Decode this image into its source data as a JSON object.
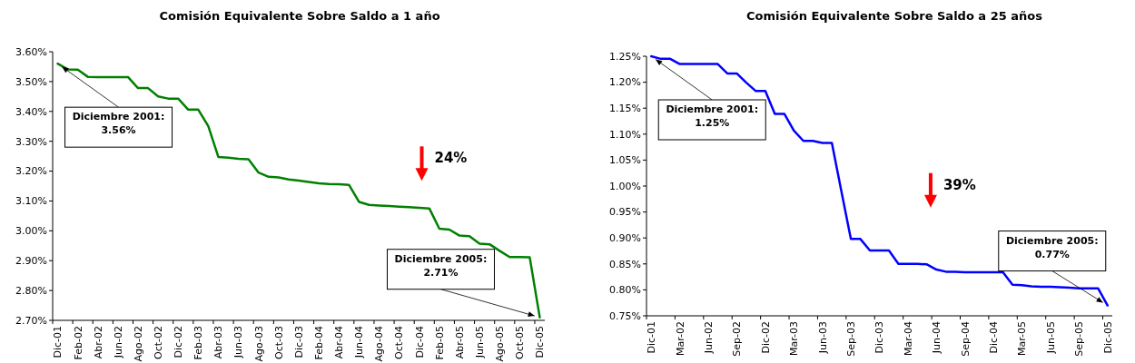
{
  "chart_data": [
    {
      "type": "line",
      "title": "Comisión Equivalente Sobre Saldo a 1 año",
      "color": "#008000",
      "categories": [
        "Dic-01",
        null,
        "Feb-02",
        null,
        "Abr-02",
        null,
        "Jun-02",
        null,
        "Ago-02",
        null,
        "Oct-02",
        null,
        "Dic-02",
        null,
        "Feb-03",
        null,
        "Abr-03",
        null,
        "Jun-03",
        null,
        "Ago-03",
        null,
        "Oct-03",
        null,
        "Dic-03",
        null,
        "Feb-04",
        null,
        "Abr-04",
        null,
        "Jun-04",
        null,
        "Ago-04",
        null,
        "Oct-04",
        null,
        "Dic-04",
        null,
        "Feb-05",
        null,
        "Abr-05",
        null,
        "Jun-05",
        null,
        "Ago-05",
        null,
        "Oct-05",
        null,
        "Dic-05"
      ],
      "values": [
        3.56,
        3.541,
        3.54,
        3.516,
        3.515,
        3.515,
        3.515,
        3.515,
        3.478,
        3.478,
        3.45,
        3.443,
        3.443,
        3.406,
        3.406,
        3.35,
        3.247,
        3.245,
        3.241,
        3.24,
        3.195,
        3.181,
        3.179,
        3.172,
        3.168,
        3.164,
        3.159,
        3.157,
        3.156,
        3.154,
        3.097,
        3.087,
        3.085,
        3.083,
        3.081,
        3.079,
        3.077,
        3.075,
        3.007,
        3.004,
        2.984,
        2.982,
        2.957,
        2.955,
        2.933,
        2.912,
        2.912,
        2.911,
        2.71
      ],
      "ylim": [
        2.7,
        3.6
      ],
      "yticks": [
        {
          "value": 2.7,
          "label": "2.70%"
        },
        {
          "value": 2.8,
          "label": "2.80%"
        },
        {
          "value": 2.9,
          "label": "2.90%"
        },
        {
          "value": 3.0,
          "label": "3.00%"
        },
        {
          "value": 3.1,
          "label": "3.10%"
        },
        {
          "value": 3.2,
          "label": "3.20%"
        },
        {
          "value": 3.3,
          "label": "3.30%"
        },
        {
          "value": 3.4,
          "label": "3.40%"
        },
        {
          "value": 3.5,
          "label": "3.50%"
        },
        {
          "value": 3.6,
          "label": "3.60%"
        }
      ],
      "annotations": [
        {
          "text": "Diciembre 2001:\n3.56%",
          "x": "Dic-01",
          "y": 3.56
        },
        {
          "text": "Diciembre 2005:\n2.71%",
          "x": "Dic-05",
          "y": 2.71
        },
        "24%"
      ]
    },
    {
      "type": "line",
      "title": "Comisión Equivalente Sobre Saldo a 25 años",
      "color": "#0000ff",
      "categories": [
        "Dic-01",
        null,
        null,
        "Mar-02",
        null,
        null,
        "Jun-02",
        null,
        null,
        "Sep-02",
        null,
        null,
        "Dic-02",
        null,
        null,
        "Mar-03",
        null,
        null,
        "Jun-03",
        null,
        null,
        "Sep-03",
        null,
        null,
        "Dic-03",
        null,
        null,
        "Mar-04",
        null,
        null,
        "Jun-04",
        null,
        null,
        "Sep-04",
        null,
        null,
        "Dic-04",
        null,
        null,
        "Mar-05",
        null,
        null,
        "Jun-05",
        null,
        null,
        "Sep-05",
        null,
        null,
        "Dic-05"
      ],
      "values": [
        1.25,
        1.245,
        1.245,
        1.235,
        1.235,
        1.235,
        1.235,
        1.235,
        1.217,
        1.217,
        1.199,
        1.183,
        1.183,
        1.139,
        1.139,
        1.107,
        1.087,
        1.087,
        1.083,
        1.083,
        0.99,
        0.898,
        0.898,
        0.876,
        0.876,
        0.876,
        0.85,
        0.85,
        0.85,
        0.849,
        0.839,
        0.835,
        0.835,
        0.834,
        0.834,
        0.834,
        0.834,
        0.834,
        0.81,
        0.809,
        0.807,
        0.806,
        0.806,
        0.805,
        0.804,
        0.803,
        0.803,
        0.803,
        0.77
      ],
      "ylim": [
        0.75,
        1.25
      ],
      "yticks": [
        {
          "value": 0.75,
          "label": "0.75%"
        },
        {
          "value": 0.8,
          "label": "0.80%"
        },
        {
          "value": 0.85,
          "label": "0.85%"
        },
        {
          "value": 0.9,
          "label": "0.90%"
        },
        {
          "value": 0.95,
          "label": "0.95%"
        },
        {
          "value": 1.0,
          "label": "1.00%"
        },
        {
          "value": 1.05,
          "label": "1.05%"
        },
        {
          "value": 1.1,
          "label": "1.10%"
        },
        {
          "value": 1.15,
          "label": "1.15%"
        },
        {
          "value": 1.2,
          "label": "1.20%"
        },
        {
          "value": 1.25,
          "label": "1.25%"
        }
      ],
      "annotations": [
        {
          "text": "Diciembre 2001:\n1.25%",
          "x": "Dic-01",
          "y": 1.25
        },
        {
          "text": "Diciembre 2005:\n0.77%",
          "x": "Dic-05",
          "y": 0.77
        },
        "39%"
      ]
    }
  ]
}
